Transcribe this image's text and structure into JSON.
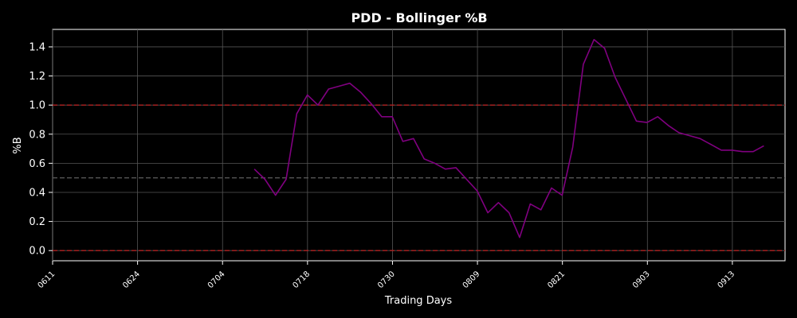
{
  "chart_data": {
    "type": "line",
    "title": "PDD - Bollinger %B",
    "xlabel": "Trading Days",
    "ylabel": "%B",
    "ylim": [
      -0.07,
      1.52
    ],
    "yticks": [
      "0.0",
      "0.2",
      "0.4",
      "0.6",
      "0.8",
      "1.0",
      "1.2",
      "1.4"
    ],
    "xticks": [
      "0611",
      "0624",
      "0704",
      "0718",
      "0730",
      "0809",
      "0821",
      "0903",
      "0913"
    ],
    "x_range": [
      0,
      69
    ],
    "grid": true,
    "reference_lines": [
      {
        "y": 1.0,
        "style": "dashed",
        "color": "#b22222"
      },
      {
        "y": 0.5,
        "style": "dashed",
        "color": "#555555"
      },
      {
        "y": 0.0,
        "style": "dashed",
        "color": "#b22222"
      }
    ],
    "series": [
      {
        "color": "#800080",
        "start_index": 19,
        "values": [
          0.56,
          0.49,
          0.38,
          0.49,
          0.94,
          1.07,
          1.0,
          1.11,
          1.13,
          1.15,
          1.09,
          1.01,
          0.92,
          0.92,
          0.75,
          0.77,
          0.63,
          0.6,
          0.56,
          0.57,
          0.49,
          0.41,
          0.26,
          0.33,
          0.26,
          0.09,
          0.32,
          0.28,
          0.43,
          0.38,
          0.71,
          1.28,
          1.45,
          1.39,
          1.19,
          1.04,
          0.89,
          0.88,
          0.92,
          0.86,
          0.81,
          0.79,
          0.77,
          0.73,
          0.69,
          0.69,
          0.68,
          0.68,
          0.72
        ]
      }
    ]
  }
}
